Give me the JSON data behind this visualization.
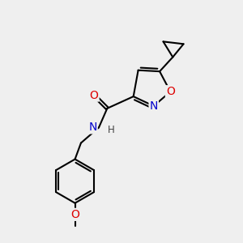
{
  "background_color": "#efefef",
  "bond_color": "#000000",
  "bond_width": 1.5,
  "atom_colors": {
    "N": "#0000cc",
    "O": "#dd0000",
    "C": "#000000",
    "H": "#404040"
  },
  "font_size_atom": 10,
  "font_size_small": 8.5
}
